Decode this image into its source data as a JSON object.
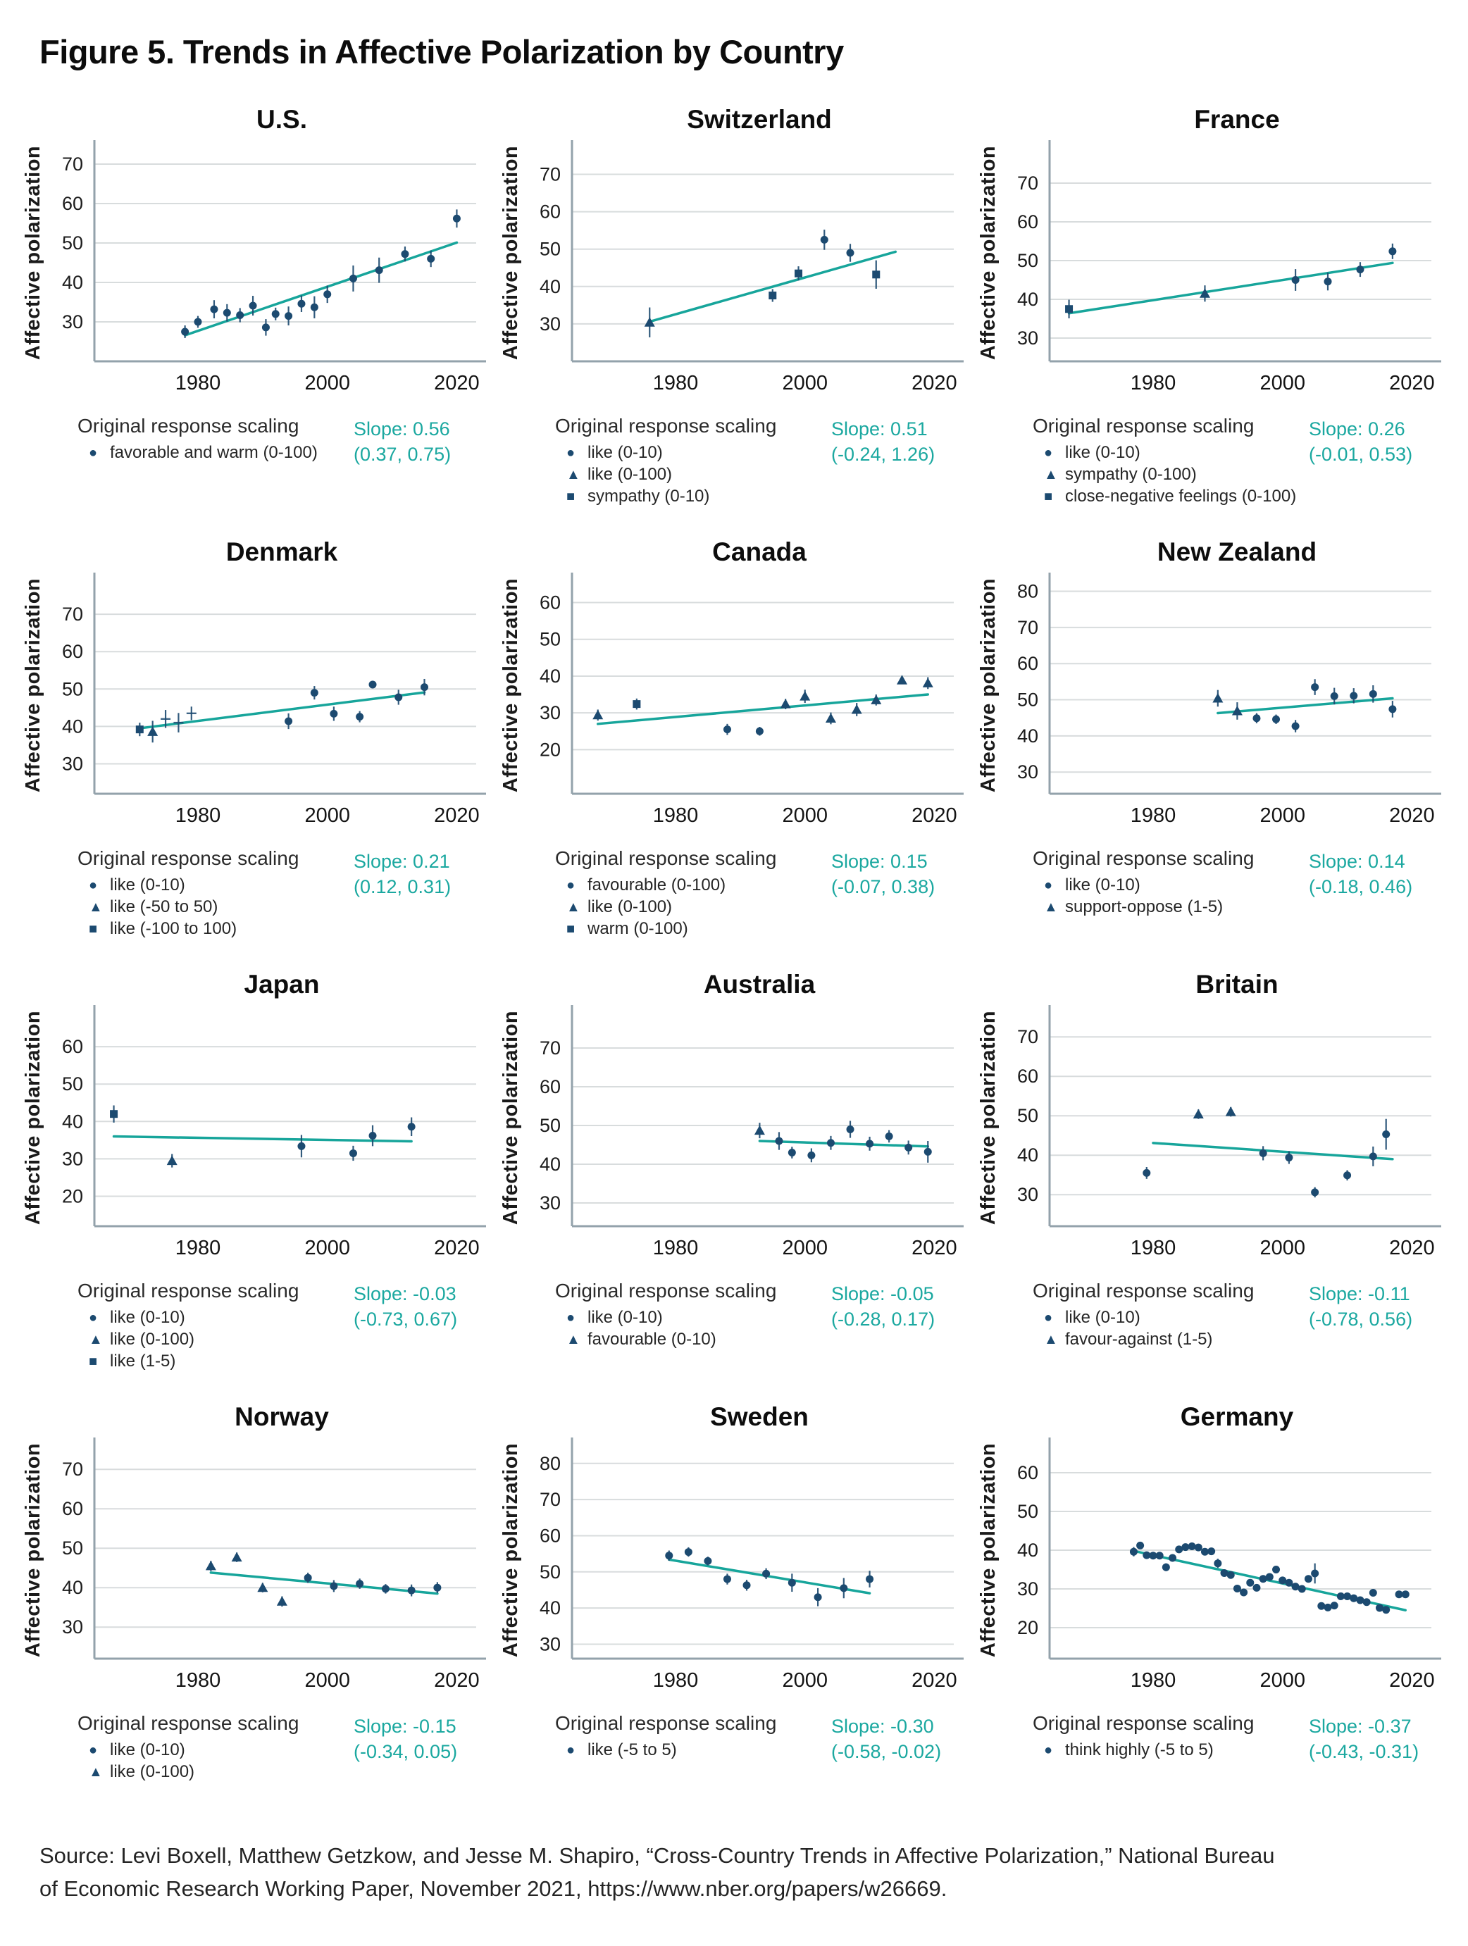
{
  "figure_title": "Figure 5. Trends in Affective Polarization by Country",
  "legend_heading": "Original response scaling",
  "source": {
    "line1": "Source: Levi Boxell, Matthew Getzkow, and Jesse M. Shapiro, “Cross-Country Trends in Affective Polarization,” National Bureau",
    "line2": "of Economic Research Working Paper, November 2021, https://www.nber.org/papers/w26669."
  },
  "colors": {
    "point": "#1c4a70",
    "trend": "#17a59b",
    "slope_text": "#1ba8a0",
    "grid": "#d8dcdd",
    "axis": "#93a2ab"
  },
  "x_axis": {
    "ticks": [
      1980,
      2000,
      2020
    ],
    "range": [
      1964,
      2023
    ]
  },
  "point_format": [
    "year",
    "value",
    "stderr",
    "marker: c=circle t=triangle s=square p=plus (default c)"
  ],
  "chart_data": [
    {
      "type": "scatter",
      "title": "U.S.",
      "ylabel": "Affective polarization",
      "yticks": [
        30,
        40,
        50,
        60,
        70
      ],
      "ylim": [
        20,
        75
      ],
      "slope_label": "Slope: 0.56",
      "ci_label": "(0.37, 0.75)",
      "legend": [
        {
          "marker": "circle",
          "label": "favorable and warm (0-100)"
        }
      ],
      "trend": [
        1978,
        26.6,
        2020,
        50.1
      ],
      "points": [
        [
          1978,
          27.5,
          1.6
        ],
        [
          1980,
          30,
          1.5
        ],
        [
          1982.5,
          33.2,
          2.3
        ],
        [
          1984.5,
          32.3,
          2.2
        ],
        [
          1986.5,
          31.7,
          1.8
        ],
        [
          1988.5,
          34.1,
          2.5
        ],
        [
          1990.5,
          28.6,
          2.1
        ],
        [
          1992,
          32,
          1.6
        ],
        [
          1994,
          31.5,
          2.4
        ],
        [
          1996,
          34.6,
          2.1
        ],
        [
          1998,
          33.7,
          2.8
        ],
        [
          2000,
          37,
          2.2
        ],
        [
          2004,
          41,
          3.3
        ],
        [
          2008,
          43.1,
          3.2
        ],
        [
          2012,
          47.2,
          1.9
        ],
        [
          2016,
          46,
          2.1
        ],
        [
          2020,
          56.2,
          2.3
        ]
      ]
    },
    {
      "type": "scatter",
      "title": "Switzerland",
      "ylabel": "Affective polarization",
      "yticks": [
        30,
        40,
        50,
        60,
        70
      ],
      "ylim": [
        20,
        78
      ],
      "slope_label": "Slope: 0.51",
      "ci_label": "(-0.24, 1.26)",
      "legend": [
        {
          "marker": "circle",
          "label": "like (0-10)"
        },
        {
          "marker": "triangle",
          "label": "like (0-100)"
        },
        {
          "marker": "square",
          "label": "sympathy (0-10)"
        }
      ],
      "trend": [
        1976,
        30.6,
        2014,
        49.3
      ],
      "points": [
        [
          1976,
          30.4,
          4.0,
          "t"
        ],
        [
          1995,
          37.6,
          1.7,
          "s"
        ],
        [
          1999,
          43.5,
          1.9,
          "s"
        ],
        [
          2003,
          52.5,
          2.7
        ],
        [
          2007,
          49,
          2.4
        ],
        [
          2011,
          43.2,
          3.8,
          "s"
        ]
      ]
    },
    {
      "type": "scatter",
      "title": "France",
      "ylabel": "Affective polarization",
      "yticks": [
        30,
        40,
        50,
        60,
        70
      ],
      "ylim": [
        24,
        80
      ],
      "slope_label": "Slope: 0.26",
      "ci_label": "(-0.01, 0.53)",
      "legend": [
        {
          "marker": "circle",
          "label": "like (0-10)"
        },
        {
          "marker": "triangle",
          "label": "sympathy (0-100)"
        },
        {
          "marker": "square",
          "label": "close-negative feelings (0-100)"
        }
      ],
      "trend": [
        1967,
        36.4,
        2017,
        49.4
      ],
      "points": [
        [
          1967,
          37.5,
          2.4,
          "s"
        ],
        [
          1988,
          41.5,
          2.1,
          "t"
        ],
        [
          2002,
          45,
          2.8
        ],
        [
          2007,
          44.6,
          2.3
        ],
        [
          2012,
          47.7,
          1.9
        ],
        [
          2017,
          52.4,
          2.0
        ]
      ]
    },
    {
      "type": "scatter",
      "title": "Denmark",
      "ylabel": "Affective polarization",
      "yticks": [
        30,
        40,
        50,
        60,
        70
      ],
      "ylim": [
        22,
        80
      ],
      "slope_label": "Slope: 0.21",
      "ci_label": "(0.12, 0.31)",
      "legend": [
        {
          "marker": "circle",
          "label": "like (0-10)"
        },
        {
          "marker": "triangle",
          "label": "like (-50 to 50)"
        },
        {
          "marker": "square",
          "label": "like (-100 to 100)"
        }
      ],
      "trend": [
        1971,
        39.5,
        2015,
        49.1
      ],
      "points": [
        [
          1971,
          39.2,
          1.8,
          "s"
        ],
        [
          1973,
          38.6,
          2.9,
          "t"
        ],
        [
          1975,
          42,
          2.4,
          "p"
        ],
        [
          1977,
          41,
          2.6,
          "p"
        ],
        [
          1979,
          43.5,
          1.8,
          "p"
        ],
        [
          1994,
          41.4,
          2.1
        ],
        [
          1998,
          49,
          1.8
        ],
        [
          2001,
          43.4,
          1.9
        ],
        [
          2005,
          42.6,
          1.5
        ],
        [
          2007,
          51.2,
          1.0
        ],
        [
          2011,
          47.8,
          2.0
        ],
        [
          2015,
          50.5,
          2.2
        ]
      ]
    },
    {
      "type": "scatter",
      "title": "Canada",
      "ylabel": "Affective polarization",
      "yticks": [
        20,
        30,
        40,
        50,
        60
      ],
      "ylim": [
        8,
        67
      ],
      "slope_label": "Slope: 0.15",
      "ci_label": "(-0.07, 0.38)",
      "legend": [
        {
          "marker": "circle",
          "label": "favourable (0-100)"
        },
        {
          "marker": "triangle",
          "label": "like (0-100)"
        },
        {
          "marker": "square",
          "label": "warm (0-100)"
        }
      ],
      "trend": [
        1968,
        27.0,
        2019,
        35.0
      ],
      "points": [
        [
          1968,
          29.4,
          1.5,
          "t"
        ],
        [
          1974,
          32.4,
          1.5,
          "s"
        ],
        [
          1988,
          25.5,
          1.5
        ],
        [
          1993,
          25,
          1.2
        ],
        [
          1997,
          32.4,
          1.4,
          "t"
        ],
        [
          2000,
          34.5,
          1.8,
          "t"
        ],
        [
          2004,
          28.5,
          1.6,
          "t"
        ],
        [
          2008,
          30.9,
          1.8,
          "t"
        ],
        [
          2011,
          33.5,
          1.5,
          "t"
        ],
        [
          2015,
          38.9,
          0.9,
          "t"
        ],
        [
          2019,
          38.1,
          1.6,
          "t"
        ]
      ]
    },
    {
      "type": "scatter",
      "title": "New Zealand",
      "ylabel": "Affective polarization",
      "yticks": [
        30,
        40,
        50,
        60,
        70,
        80
      ],
      "ylim": [
        24,
        84
      ],
      "slope_label": "Slope: 0.14",
      "ci_label": "(-0.18, 0.46)",
      "legend": [
        {
          "marker": "circle",
          "label": "like (0-10)"
        },
        {
          "marker": "triangle",
          "label": "support-oppose (1-5)"
        }
      ],
      "trend": [
        1990,
        46.3,
        2017,
        50.4
      ],
      "points": [
        [
          1990,
          50.4,
          2.3,
          "t"
        ],
        [
          1993,
          46.9,
          2.4,
          "t"
        ],
        [
          1996,
          44.9,
          1.4
        ],
        [
          1999,
          44.6,
          1.3
        ],
        [
          2002,
          42.7,
          1.7
        ],
        [
          2005,
          53.5,
          2.2
        ],
        [
          2008,
          51,
          2.3
        ],
        [
          2011,
          51.1,
          2.1
        ],
        [
          2014,
          51.6,
          2.4
        ],
        [
          2017,
          47.4,
          2.3
        ]
      ]
    },
    {
      "type": "scatter",
      "title": "Japan",
      "ylabel": "Affective polarization",
      "yticks": [
        20,
        30,
        40,
        50,
        60
      ],
      "ylim": [
        12,
        70
      ],
      "slope_label": "Slope: -0.03",
      "ci_label": "(-0.73, 0.67)",
      "legend": [
        {
          "marker": "circle",
          "label": "like (0-10)"
        },
        {
          "marker": "triangle",
          "label": "like (0-100)"
        },
        {
          "marker": "square",
          "label": "like (1-5)"
        }
      ],
      "trend": [
        1967,
        36.0,
        2013,
        34.7
      ],
      "points": [
        [
          1967,
          42,
          2.3,
          "s"
        ],
        [
          1976,
          29.5,
          1.8,
          "t"
        ],
        [
          1996,
          33.4,
          3.0
        ],
        [
          2004,
          31.5,
          2.0
        ],
        [
          2007,
          36.2,
          2.8
        ],
        [
          2013,
          38.6,
          2.5
        ]
      ]
    },
    {
      "type": "scatter",
      "title": "Australia",
      "ylabel": "Affective polarization",
      "yticks": [
        30,
        40,
        50,
        60,
        70
      ],
      "ylim": [
        24,
        80
      ],
      "slope_label": "Slope: -0.05",
      "ci_label": "(-0.28, 0.17)",
      "legend": [
        {
          "marker": "circle",
          "label": "like (0-10)"
        },
        {
          "marker": "triangle",
          "label": "favourable (0-10)"
        }
      ],
      "trend": [
        1993,
        46.0,
        2019,
        44.6
      ],
      "points": [
        [
          1993,
          48.7,
          2.0,
          "t"
        ],
        [
          1996,
          46,
          2.3
        ],
        [
          1998,
          43,
          1.5
        ],
        [
          2001,
          42.3,
          1.8
        ],
        [
          2004,
          45.5,
          1.8
        ],
        [
          2007,
          49,
          2.2
        ],
        [
          2010,
          45.3,
          1.8
        ],
        [
          2013,
          47.2,
          1.6
        ],
        [
          2016,
          44.3,
          1.8
        ],
        [
          2019,
          43.2,
          2.8
        ]
      ]
    },
    {
      "type": "scatter",
      "title": "Britain",
      "ylabel": "Affective polarization",
      "yticks": [
        30,
        40,
        50,
        60,
        70
      ],
      "ylim": [
        22,
        77
      ],
      "slope_label": "Slope: -0.11",
      "ci_label": "(-0.78, 0.56)",
      "legend": [
        {
          "marker": "circle",
          "label": "like (0-10)"
        },
        {
          "marker": "triangle",
          "label": "favour-against (1-5)"
        }
      ],
      "trend": [
        1980,
        43.1,
        2017,
        39.0
      ],
      "points": [
        [
          1979,
          35.5,
          1.5
        ],
        [
          1987,
          50.4,
          1.2,
          "t"
        ],
        [
          1992,
          51,
          1.2,
          "t"
        ],
        [
          1997,
          40.5,
          1.8
        ],
        [
          2001,
          39.4,
          1.6
        ],
        [
          2005,
          30.6,
          1.3
        ],
        [
          2010,
          34.9,
          1.3
        ],
        [
          2014,
          39.7,
          2.5
        ],
        [
          2016,
          45.3,
          3.9
        ]
      ]
    },
    {
      "type": "scatter",
      "title": "Norway",
      "ylabel": "Affective polarization",
      "yticks": [
        30,
        40,
        50,
        60,
        70
      ],
      "ylim": [
        22,
        77
      ],
      "slope_label": "Slope: -0.15",
      "ci_label": "(-0.34, 0.05)",
      "legend": [
        {
          "marker": "circle",
          "label": "like (0-10)"
        },
        {
          "marker": "triangle",
          "label": "like (0-100)"
        }
      ],
      "trend": [
        1982,
        43.8,
        2017,
        38.5
      ],
      "points": [
        [
          1982,
          45.5,
          1.3,
          "t"
        ],
        [
          1986,
          47.7,
          1.2,
          "t"
        ],
        [
          1990,
          40,
          1.2,
          "t"
        ],
        [
          1993,
          36.5,
          1.3,
          "t"
        ],
        [
          1997,
          42.5,
          1.3
        ],
        [
          2001,
          40.4,
          1.5
        ],
        [
          2005,
          41,
          1.3
        ],
        [
          2009,
          39.7,
          1.2
        ],
        [
          2013,
          39.3,
          1.5
        ],
        [
          2017,
          40,
          1.4
        ]
      ]
    },
    {
      "type": "scatter",
      "title": "Sweden",
      "ylabel": "Affective polarization",
      "yticks": [
        30,
        40,
        50,
        60,
        70,
        80
      ],
      "ylim": [
        26,
        86
      ],
      "slope_label": "Slope: -0.30",
      "ci_label": "(-0.58, -0.02)",
      "legend": [
        {
          "marker": "circle",
          "label": "like (-5 to 5)"
        }
      ],
      "trend": [
        1979,
        53.4,
        2010,
        44.1
      ],
      "points": [
        [
          1979,
          54.5,
          1.4
        ],
        [
          1982,
          55.5,
          1.3
        ],
        [
          1985,
          53,
          1.2
        ],
        [
          1988,
          48,
          1.5
        ],
        [
          1991,
          46.3,
          1.5
        ],
        [
          1994,
          49.5,
          1.5
        ],
        [
          1998,
          47,
          2.5
        ],
        [
          2002,
          43,
          2.5
        ],
        [
          2006,
          45.5,
          2.8
        ],
        [
          2010,
          48,
          2.3
        ]
      ]
    },
    {
      "type": "scatter",
      "title": "Germany",
      "ylabel": "Affective polarization",
      "yticks": [
        20,
        30,
        40,
        50,
        60
      ],
      "ylim": [
        12,
        68
      ],
      "slope_label": "Slope: -0.37",
      "ci_label": "(-0.43, -0.31)",
      "legend": [
        {
          "marker": "circle",
          "label": "think highly (-5 to 5)"
        }
      ],
      "trend": [
        1977,
        39.8,
        2019,
        24.5
      ],
      "points": [
        [
          1977,
          39.6,
          1.2
        ],
        [
          1978,
          41.2,
          0.9
        ],
        [
          1979,
          38.7,
          0.9
        ],
        [
          1980,
          38.6,
          0.9
        ],
        [
          1981,
          38.6,
          0.9
        ],
        [
          1982,
          35.6,
          1.0
        ],
        [
          1983,
          38.0,
          0.8
        ],
        [
          1984,
          40.2,
          0.8
        ],
        [
          1985,
          40.8,
          0.8
        ],
        [
          1986,
          41.0,
          0.8
        ],
        [
          1987,
          40.7,
          0.8
        ],
        [
          1988,
          39.6,
          0.8
        ],
        [
          1989,
          39.7,
          0.8
        ],
        [
          1990,
          36.6,
          1.2
        ],
        [
          1991,
          34.1,
          0.8
        ],
        [
          1992,
          33.6,
          0.8
        ],
        [
          1993,
          30.1,
          0.8
        ],
        [
          1994,
          29.1,
          0.8
        ],
        [
          1995,
          31.6,
          0.9
        ],
        [
          1996,
          30.3,
          0.9
        ],
        [
          1997,
          32.6,
          0.8
        ],
        [
          1998,
          33.1,
          0.8
        ],
        [
          1999,
          35.0,
          0.9
        ],
        [
          2000,
          32.2,
          0.8
        ],
        [
          2001,
          31.6,
          0.9
        ],
        [
          2002,
          30.6,
          0.8
        ],
        [
          2003,
          30.0,
          0.8
        ],
        [
          2004,
          32.6,
          0.9
        ],
        [
          2005,
          34.0,
          2.6
        ],
        [
          2006,
          25.6,
          0.9
        ],
        [
          2007,
          25.2,
          0.9
        ],
        [
          2008,
          25.7,
          0.9
        ],
        [
          2009,
          28.1,
          0.9
        ],
        [
          2010,
          28.1,
          0.9
        ],
        [
          2011,
          27.6,
          0.9
        ],
        [
          2012,
          27.1,
          0.9
        ],
        [
          2013,
          26.6,
          0.9
        ],
        [
          2014,
          29.0,
          0.9
        ],
        [
          2015,
          25.1,
          0.9
        ],
        [
          2016,
          24.6,
          0.9
        ],
        [
          2018,
          28.6,
          0.9
        ],
        [
          2019,
          28.6,
          0.9
        ]
      ]
    }
  ]
}
